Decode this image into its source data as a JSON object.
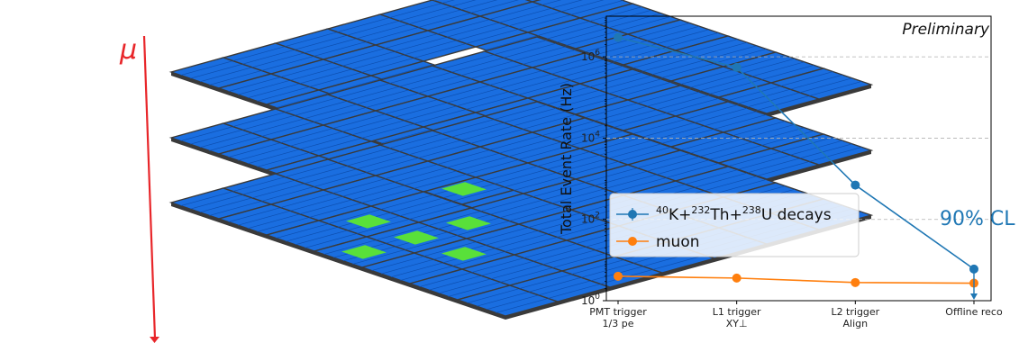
{
  "diagram": {
    "particle_label": "μ",
    "particle_color": "#e8262a",
    "tile_color": "#1a6ee0",
    "hit_color": "#59e03a",
    "edge_color": "#3a3a3a"
  },
  "chart_data": {
    "type": "line",
    "annotation": "Preliminary",
    "ylabel": "Total Event Rate (Hz)",
    "yscale": "log",
    "ylim": [
      1,
      10000000
    ],
    "yticks": [
      {
        "value": 1,
        "base": "10",
        "exp": "0"
      },
      {
        "value": 100,
        "base": "10",
        "exp": "2"
      },
      {
        "value": 10000,
        "base": "10",
        "exp": "4"
      },
      {
        "value": 1000000,
        "base": "10",
        "exp": "6"
      }
    ],
    "grid": "y-major-dashed",
    "categories": [
      {
        "line1": "PMT trigger",
        "line2": "1/3 pe"
      },
      {
        "line1": "L1 trigger",
        "line2": "XY⊥"
      },
      {
        "line1": "L2 trigger",
        "line2": "Align"
      },
      {
        "line1": "Offline reco",
        "line2": ""
      }
    ],
    "series": [
      {
        "legend_parts": [
          "40",
          "K+",
          "232",
          "Th+",
          "238",
          "U decays"
        ],
        "color": "#1f77b4",
        "values": [
          3000000,
          550000,
          700,
          6
        ]
      },
      {
        "name": "muon",
        "color": "#ff7f0e",
        "values": [
          4.0,
          3.6,
          2.8,
          2.7
        ]
      }
    ],
    "upper_limit": {
      "label": "90% CL",
      "category_index": 3
    },
    "legend_position": "center-left"
  }
}
